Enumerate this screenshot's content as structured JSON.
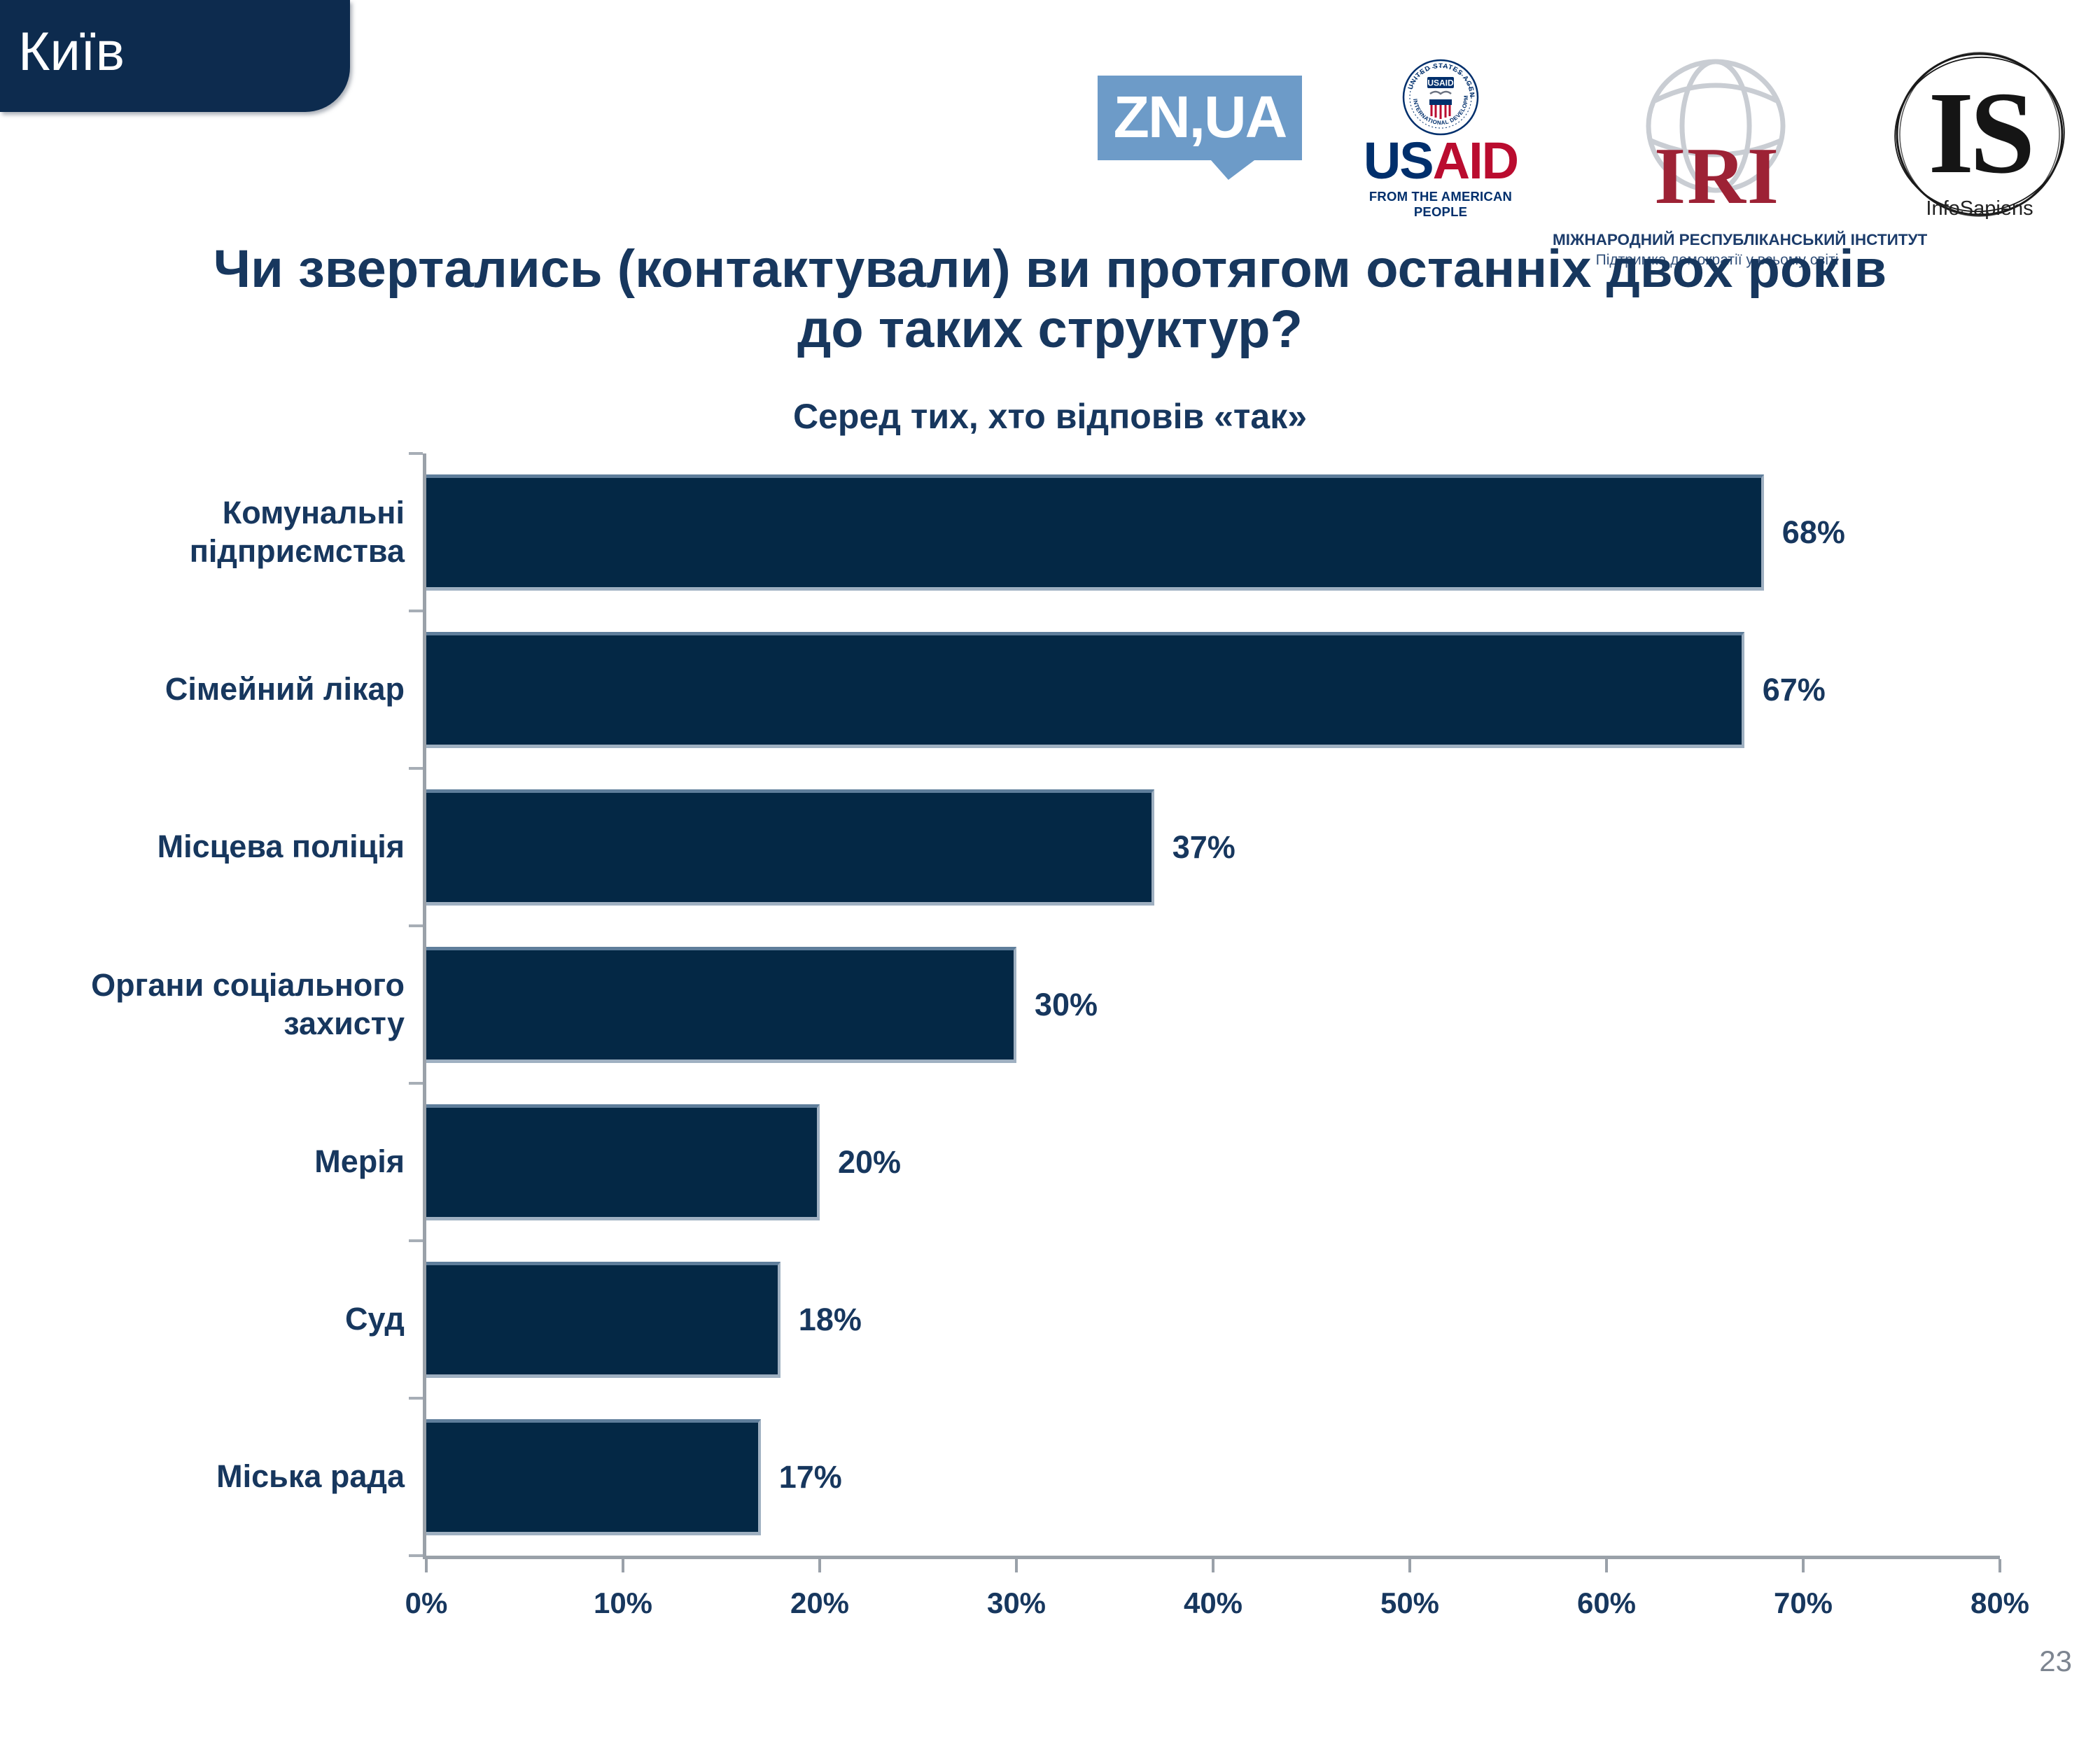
{
  "slide": {
    "region_label": "Київ",
    "page_number": "23"
  },
  "logos": {
    "znua": {
      "wordmark": "ZN,UA"
    },
    "usaid": {
      "seal_center": "USAID",
      "seal_ring_top": "UNITED STATES AGENCY",
      "seal_ring_bottom": "INTERNATIONAL DEVELOPMENT",
      "wordmark_us": "US",
      "wordmark_aid": "AID",
      "tagline": "FROM THE AMERICAN PEOPLE"
    },
    "iri": {
      "wordmark": "IRI",
      "name_line": "МІЖНАРОДНИЙ РЕСПУБЛІКАНСЬКИЙ ІНСТИТУТ",
      "tagline": "Підтримка демократії у всьому світі"
    },
    "infosapiens": {
      "monogram": "IS",
      "name": "InfoSapiens"
    }
  },
  "chart_data": {
    "type": "bar",
    "orientation": "horizontal",
    "title": "Чи звертались (контактували) ви протягом останніх двох років до таких структур?",
    "title_lines": [
      "Чи звертались (контактували) ви протягом останніх двох років",
      "до таких структур?"
    ],
    "subtitle": "Серед тих, хто відповів «так»",
    "categories": [
      "Комунальні підприємства",
      "Сімейний лікар",
      "Місцева поліція",
      "Органи соціального захисту",
      "Мерія",
      "Суд",
      "Міська рада"
    ],
    "values": [
      68,
      67,
      37,
      30,
      20,
      18,
      17
    ],
    "value_labels": [
      "68%",
      "67%",
      "37%",
      "30%",
      "20%",
      "18%",
      "17%"
    ],
    "xlim": [
      0,
      80
    ],
    "x_ticks": [
      "0%",
      "10%",
      "20%",
      "30%",
      "40%",
      "50%",
      "60%",
      "70%",
      "80%"
    ],
    "grid": false,
    "legend": false,
    "bar_color": "#042845",
    "bar_edge_color": "#9fb0c1",
    "axis_color": "#9aa1a9",
    "text_color": "#17375e"
  }
}
